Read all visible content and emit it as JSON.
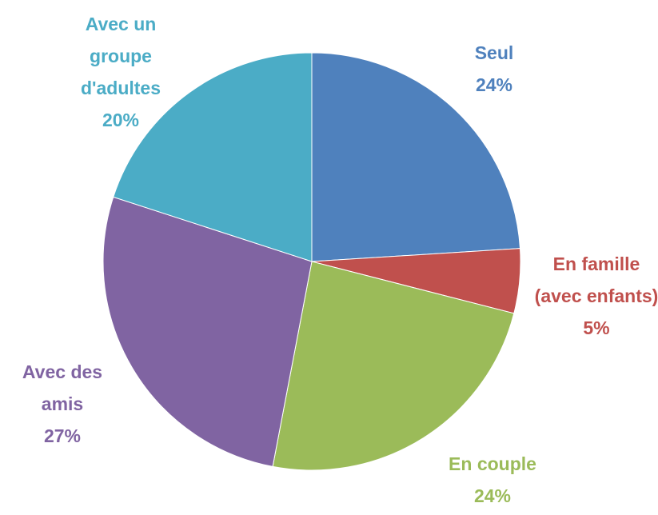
{
  "chart_data": {
    "type": "pie",
    "categories": [
      "Seul",
      "En famille (avec enfants)",
      "En couple",
      "Avec des amis",
      "Avec un groupe d'adultes"
    ],
    "values": [
      24,
      5,
      24,
      27,
      20
    ],
    "value_labels": [
      "24%",
      "5%",
      "24%",
      "27%",
      "20%"
    ],
    "colors": [
      "#4f81bd",
      "#c0504d",
      "#9bbb59",
      "#8064a2",
      "#4bacc6"
    ]
  }
}
